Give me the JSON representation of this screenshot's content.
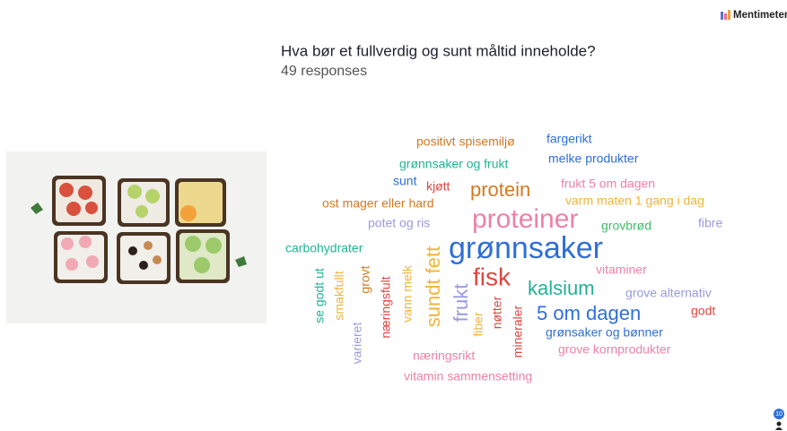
{
  "header": {
    "brand": "Mentimeter",
    "question": "Hva bør et fullverdig og sunt måltid inneholde?",
    "responses": "49 responses"
  },
  "word_cloud": {
    "words": [
      "positivt spisemiljø",
      "fargerikt",
      "grønnsaker og frukt",
      "melke produkter",
      "sunt",
      "kjøtt",
      "protein",
      "frukt 5 om dagen",
      "varm maten 1 gang i dag",
      "ost mager eller hard",
      "proteiner",
      "grovbrød",
      "fibre",
      "potet og ris",
      "carbohydrater",
      "grønnsaker",
      "vitaminer",
      "fisk",
      "kalsium",
      "grove alternativ",
      "5 om dagen",
      "godt",
      "grønsaker og bønner",
      "grove kornprodukter",
      "næringsrikt",
      "vitamin sammensetting",
      "se godt ut",
      "smakfullt",
      "grovt",
      "næringsfult",
      "vann melk",
      "sundt fett",
      "frukt",
      "fiber",
      "nøtter",
      "mineraler",
      "varieret"
    ]
  },
  "footer": {
    "participants": "10"
  }
}
